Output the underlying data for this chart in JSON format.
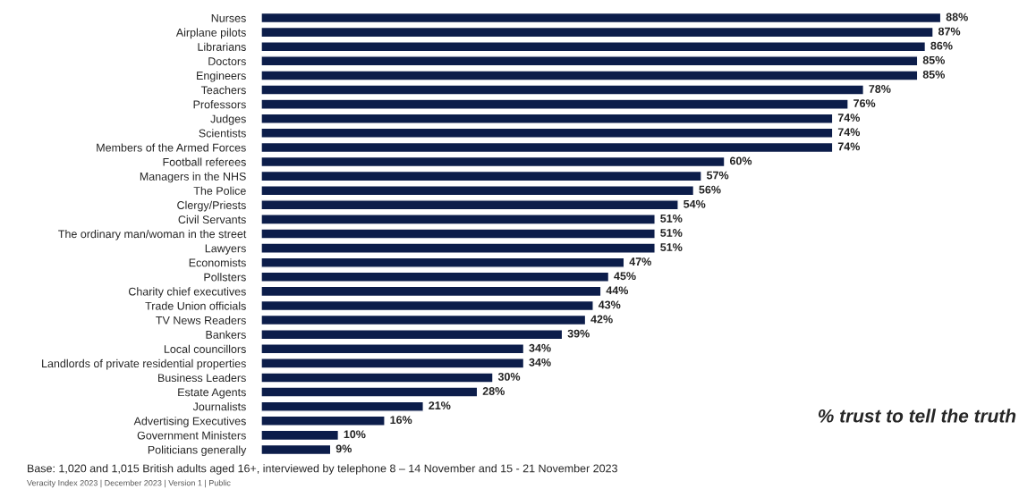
{
  "chart_data": {
    "type": "bar",
    "orientation": "horizontal",
    "data_labels": true,
    "color": "#0c1d4a",
    "grid": false,
    "legend": false,
    "categories": [
      "Nurses",
      "Airplane pilots",
      "Librarians",
      "Doctors",
      "Engineers",
      "Teachers",
      "Professors",
      "Judges",
      "Scientists",
      "Members of the Armed Forces",
      "Football referees",
      "Managers in the NHS",
      "The Police",
      "Clergy/Priests",
      "Civil Servants",
      "The ordinary man/woman in the street",
      "Lawyers",
      "Economists",
      "Pollsters",
      "Charity chief executives",
      "Trade Union officials",
      "TV News Readers",
      "Bankers",
      "Local councillors",
      "Landlords of private residential properties",
      "Business Leaders",
      "Estate Agents",
      "Journalists",
      "Advertising Executives",
      "Government Ministers",
      "Politicians generally"
    ],
    "values": [
      88,
      87,
      86,
      85,
      85,
      78,
      76,
      74,
      74,
      74,
      60,
      57,
      56,
      54,
      51,
      51,
      51,
      47,
      45,
      44,
      43,
      42,
      39,
      34,
      34,
      30,
      28,
      21,
      16,
      10,
      9
    ],
    "value_labels": [
      "88%",
      "87%",
      "86%",
      "85%",
      "85%",
      "78%",
      "76%",
      "74%",
      "74%",
      "74%",
      "60%",
      "57%",
      "56%",
      "54%",
      "51%",
      "51%",
      "51%",
      "47%",
      "45%",
      "44%",
      "43%",
      "42%",
      "39%",
      "34%",
      "34%",
      "30%",
      "28%",
      "21%",
      "16%",
      "10%",
      "9%"
    ],
    "annotations": [
      "% trust to tell the truth",
      "Base: 1,020 and 1,015 British adults aged 16+, interviewed by telephone 8 – 14 November and 15 - 21 November 2023",
      "Veracity Index 2023 | December 2023 | Version 1 | Public"
    ]
  }
}
